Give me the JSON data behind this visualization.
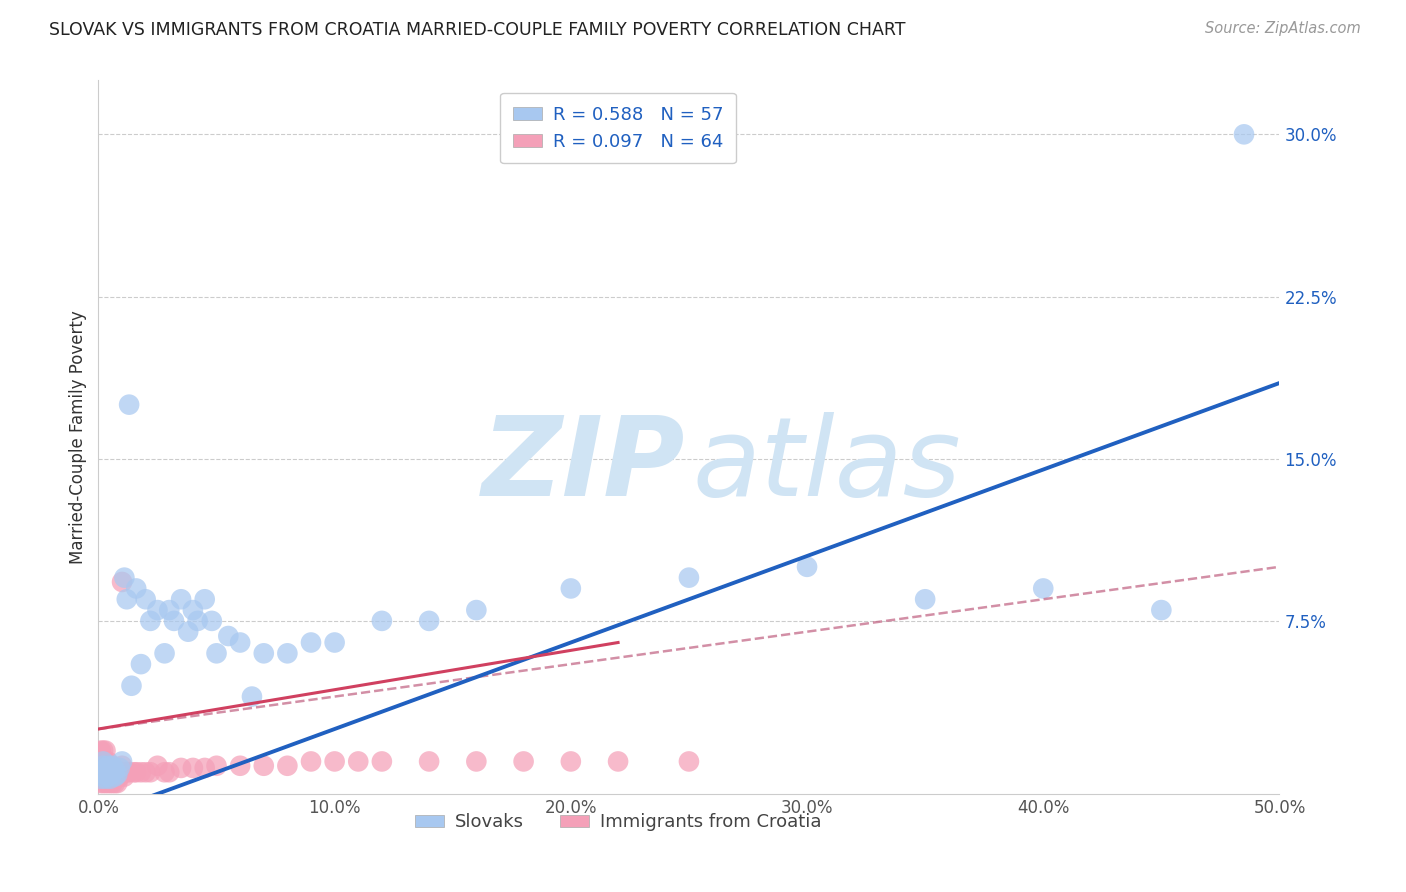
{
  "title": "SLOVAK VS IMMIGRANTS FROM CROATIA MARRIED-COUPLE FAMILY POVERTY CORRELATION CHART",
  "source": "Source: ZipAtlas.com",
  "ylabel": "Married-Couple Family Poverty",
  "xlim": [
    0,
    0.5
  ],
  "ylim": [
    -0.005,
    0.325
  ],
  "xtick_labels": [
    "0.0%",
    "10.0%",
    "20.0%",
    "30.0%",
    "40.0%",
    "50.0%"
  ],
  "xtick_vals": [
    0,
    0.1,
    0.2,
    0.3,
    0.4,
    0.5
  ],
  "ytick_right_labels": [
    "7.5%",
    "15.0%",
    "22.5%",
    "30.0%"
  ],
  "ytick_right_vals": [
    0.075,
    0.15,
    0.225,
    0.3
  ],
  "legend_r1": "R = 0.588",
  "legend_n1": "N = 57",
  "legend_r2": "R = 0.097",
  "legend_n2": "N = 64",
  "color_slovak": "#A8C8F0",
  "color_croatia": "#F4A0B8",
  "color_line_slovak": "#2060C0",
  "color_line_croatia": "#D04060",
  "color_line_croatia_dashed": "#C06080",
  "watermark_color": "#D0E4F4",
  "background_color": "#FFFFFF",
  "grid_color": "#CCCCCC",
  "slovak_x": [
    0.001,
    0.001,
    0.002,
    0.002,
    0.002,
    0.003,
    0.003,
    0.003,
    0.004,
    0.004,
    0.004,
    0.005,
    0.005,
    0.005,
    0.006,
    0.006,
    0.007,
    0.007,
    0.008,
    0.009,
    0.01,
    0.011,
    0.012,
    0.013,
    0.014,
    0.016,
    0.018,
    0.02,
    0.022,
    0.025,
    0.028,
    0.03,
    0.032,
    0.035,
    0.038,
    0.04,
    0.042,
    0.045,
    0.048,
    0.05,
    0.055,
    0.06,
    0.065,
    0.07,
    0.08,
    0.09,
    0.1,
    0.12,
    0.14,
    0.16,
    0.2,
    0.25,
    0.3,
    0.35,
    0.4,
    0.45,
    0.485
  ],
  "slovak_y": [
    0.005,
    0.002,
    0.008,
    0.003,
    0.01,
    0.005,
    0.002,
    0.007,
    0.005,
    0.003,
    0.008,
    0.004,
    0.006,
    0.002,
    0.005,
    0.008,
    0.003,
    0.006,
    0.004,
    0.007,
    0.01,
    0.095,
    0.085,
    0.175,
    0.045,
    0.09,
    0.055,
    0.085,
    0.075,
    0.08,
    0.06,
    0.08,
    0.075,
    0.085,
    0.07,
    0.08,
    0.075,
    0.085,
    0.075,
    0.06,
    0.068,
    0.065,
    0.04,
    0.06,
    0.06,
    0.065,
    0.065,
    0.075,
    0.075,
    0.08,
    0.09,
    0.095,
    0.1,
    0.085,
    0.09,
    0.08,
    0.3
  ],
  "croatia_x": [
    0.001,
    0.001,
    0.001,
    0.001,
    0.001,
    0.001,
    0.001,
    0.002,
    0.002,
    0.002,
    0.002,
    0.002,
    0.002,
    0.003,
    0.003,
    0.003,
    0.003,
    0.003,
    0.003,
    0.004,
    0.004,
    0.004,
    0.004,
    0.005,
    0.005,
    0.005,
    0.006,
    0.006,
    0.007,
    0.007,
    0.008,
    0.008,
    0.009,
    0.01,
    0.01,
    0.011,
    0.012,
    0.013,
    0.015,
    0.016,
    0.018,
    0.02,
    0.022,
    0.025,
    0.028,
    0.03,
    0.035,
    0.04,
    0.045,
    0.05,
    0.06,
    0.07,
    0.08,
    0.09,
    0.1,
    0.11,
    0.12,
    0.14,
    0.16,
    0.18,
    0.2,
    0.22,
    0.25,
    0.01
  ],
  "croatia_y": [
    0.0,
    0.002,
    0.004,
    0.006,
    0.008,
    0.01,
    0.015,
    0.0,
    0.003,
    0.005,
    0.008,
    0.01,
    0.015,
    0.0,
    0.003,
    0.005,
    0.008,
    0.01,
    0.015,
    0.0,
    0.003,
    0.005,
    0.01,
    0.0,
    0.003,
    0.005,
    0.0,
    0.005,
    0.0,
    0.005,
    0.0,
    0.005,
    0.003,
    0.005,
    0.008,
    0.003,
    0.005,
    0.005,
    0.005,
    0.005,
    0.005,
    0.005,
    0.005,
    0.008,
    0.005,
    0.005,
    0.007,
    0.007,
    0.007,
    0.008,
    0.008,
    0.008,
    0.008,
    0.01,
    0.01,
    0.01,
    0.01,
    0.01,
    0.01,
    0.01,
    0.01,
    0.01,
    0.01,
    0.093
  ],
  "blue_line": [
    0.0,
    0.5,
    -0.015,
    0.185
  ],
  "pink_solid_line": [
    0.0,
    0.22,
    0.025,
    0.065
  ],
  "pink_dashed_line": [
    0.0,
    0.5,
    0.025,
    0.1
  ]
}
